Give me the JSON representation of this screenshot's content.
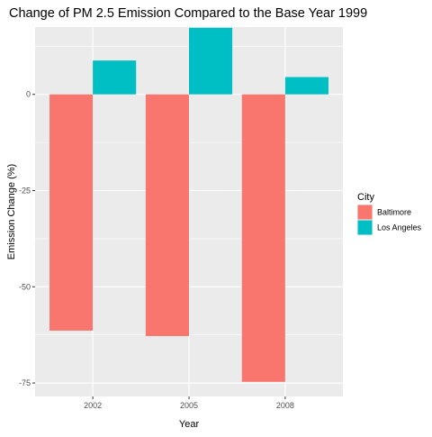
{
  "chart_data": {
    "type": "bar",
    "title": "Change of PM 2.5 Emission Compared to the Base Year 1999",
    "xlabel": "Year",
    "ylabel": "Emission Change (%)",
    "categories": [
      "2002",
      "2005",
      "2008"
    ],
    "ylim": [
      -78.5,
      17.5
    ],
    "yticks": [
      0,
      -25,
      -50,
      -75
    ],
    "grid": true,
    "legend": {
      "title": "City",
      "position": "right"
    },
    "series": [
      {
        "name": "Baltimore",
        "color": "#F8766D",
        "values": [
          -61.4,
          -62.8,
          -74.7
        ]
      },
      {
        "name": "Los Angeles",
        "color": "#00BFC4",
        "values": [
          8.8,
          17.3,
          4.5
        ]
      }
    ]
  }
}
